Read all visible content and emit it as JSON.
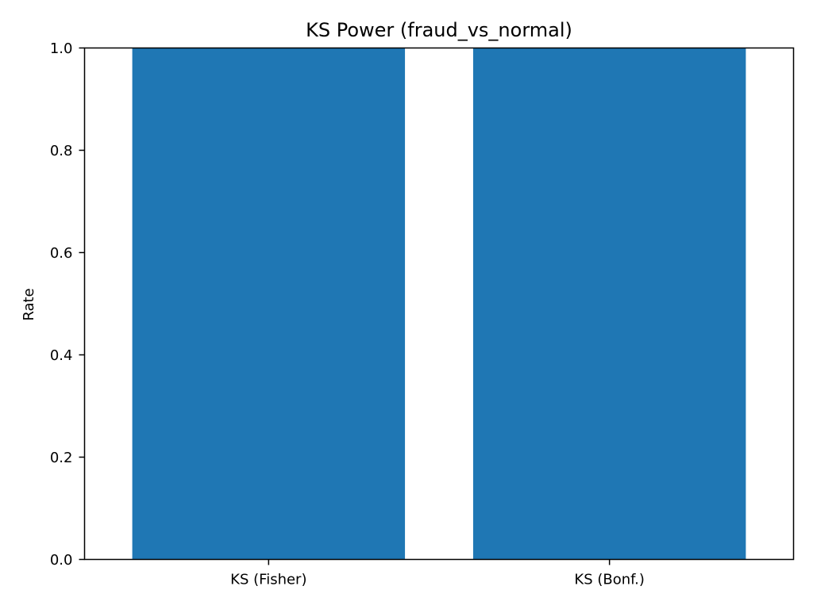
{
  "chart_data": {
    "type": "bar",
    "title": "KS Power (fraud_vs_normal)",
    "xlabel": "",
    "ylabel": "Rate",
    "categories": [
      "KS (Fisher)",
      "KS (Bonf.)"
    ],
    "values": [
      1.0,
      1.0
    ],
    "ylim": [
      0,
      1.0
    ],
    "yticks": [
      0.0,
      0.2,
      0.4,
      0.6,
      0.8,
      1.0
    ],
    "ytick_labels": [
      "0.0",
      "0.2",
      "0.4",
      "0.6",
      "0.8",
      "1.0"
    ],
    "grid": false,
    "legend": "none",
    "colors": {
      "bar": "#1f77b4",
      "axis": "#000000",
      "background": "#ffffff"
    }
  }
}
